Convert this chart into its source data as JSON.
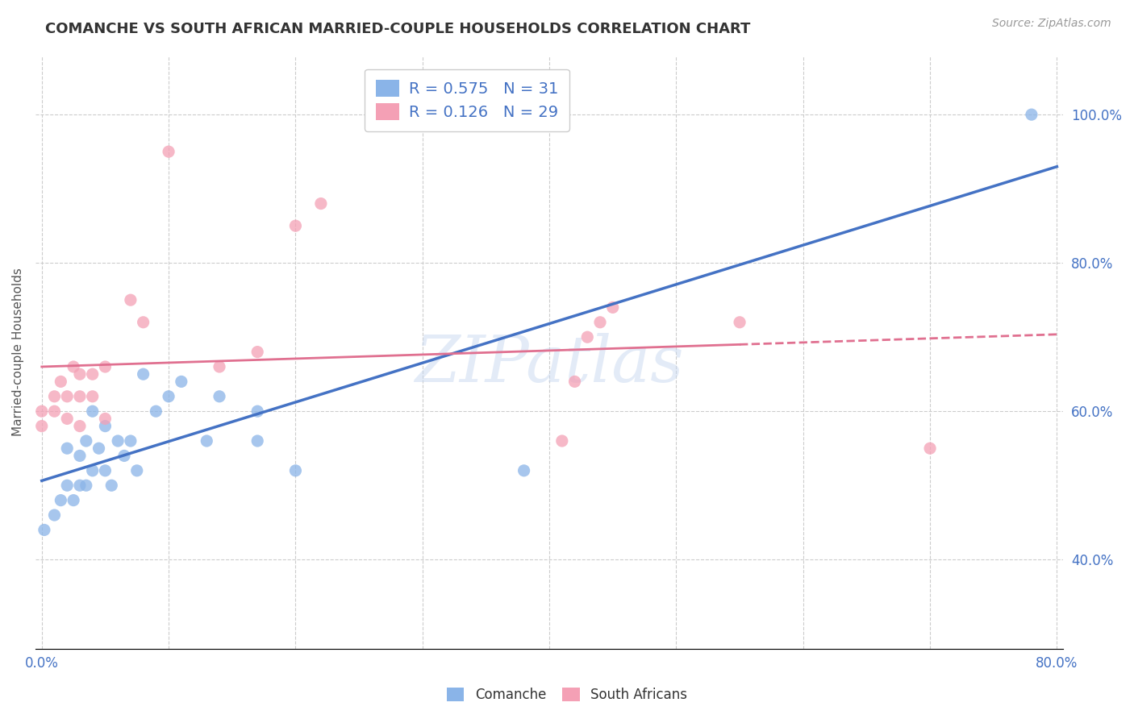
{
  "title": "COMANCHE VS SOUTH AFRICAN MARRIED-COUPLE HOUSEHOLDS CORRELATION CHART",
  "source": "Source: ZipAtlas.com",
  "ylabel": "Married-couple Households",
  "xlim": [
    -0.005,
    0.805
  ],
  "ylim": [
    0.28,
    1.08
  ],
  "xticks": [
    0.0,
    0.1,
    0.2,
    0.3,
    0.4,
    0.5,
    0.6,
    0.7,
    0.8
  ],
  "xticklabels": [
    "0.0%",
    "",
    "",
    "",
    "",
    "",
    "",
    "",
    "80.0%"
  ],
  "yticks_right": [
    0.4,
    0.6,
    0.8,
    1.0
  ],
  "yticklabels_right": [
    "40.0%",
    "60.0%",
    "80.0%",
    "100.0%"
  ],
  "comanche_color": "#8ab4e8",
  "south_african_color": "#f4a0b5",
  "comanche_line_color": "#4472c4",
  "south_african_line_color": "#e07090",
  "R_comanche": 0.575,
  "N_comanche": 31,
  "R_south_african": 0.126,
  "N_south_african": 29,
  "watermark": "ZIPatlas",
  "background_color": "#ffffff",
  "comanche_x": [
    0.002,
    0.01,
    0.015,
    0.02,
    0.02,
    0.025,
    0.03,
    0.03,
    0.035,
    0.035,
    0.04,
    0.04,
    0.045,
    0.05,
    0.05,
    0.055,
    0.06,
    0.065,
    0.07,
    0.075,
    0.08,
    0.09,
    0.1,
    0.11,
    0.13,
    0.14,
    0.17,
    0.17,
    0.2,
    0.38,
    0.78
  ],
  "comanche_y": [
    0.44,
    0.46,
    0.48,
    0.5,
    0.55,
    0.48,
    0.5,
    0.54,
    0.5,
    0.56,
    0.52,
    0.6,
    0.55,
    0.52,
    0.58,
    0.5,
    0.56,
    0.54,
    0.56,
    0.52,
    0.65,
    0.6,
    0.62,
    0.64,
    0.56,
    0.62,
    0.56,
    0.6,
    0.52,
    0.52,
    1.0
  ],
  "south_african_x": [
    0.0,
    0.0,
    0.01,
    0.01,
    0.015,
    0.02,
    0.02,
    0.025,
    0.03,
    0.03,
    0.03,
    0.04,
    0.04,
    0.05,
    0.05,
    0.07,
    0.08,
    0.1,
    0.14,
    0.17,
    0.2,
    0.22,
    0.41,
    0.42,
    0.43,
    0.44,
    0.45,
    0.55,
    0.7
  ],
  "south_african_y": [
    0.58,
    0.6,
    0.6,
    0.62,
    0.64,
    0.59,
    0.62,
    0.66,
    0.58,
    0.62,
    0.65,
    0.62,
    0.65,
    0.59,
    0.66,
    0.75,
    0.72,
    0.95,
    0.66,
    0.68,
    0.85,
    0.88,
    0.56,
    0.64,
    0.7,
    0.72,
    0.74,
    0.72,
    0.55
  ],
  "legend_comanche_label": "Comanche",
  "legend_south_african_label": "South Africans"
}
